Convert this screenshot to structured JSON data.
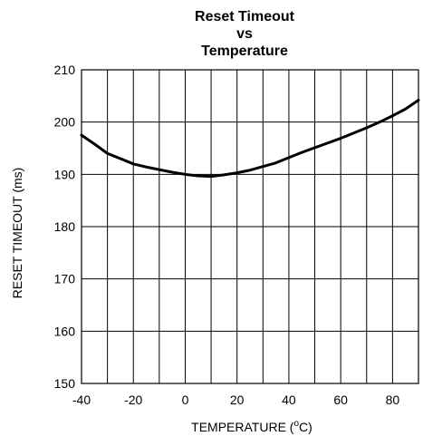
{
  "chart_data": {
    "type": "line",
    "title": [
      "Reset Timeout",
      "vs",
      "Temperature"
    ],
    "xlabel": "TEMPERATURE (",
    "xlabel_degree": "o",
    "xlabel_unit": "C)",
    "ylabel": "RESET TIMEOUT (ms)",
    "xlim": [
      -40,
      90
    ],
    "ylim": [
      150,
      210
    ],
    "x_ticks": [
      -40,
      -20,
      0,
      20,
      40,
      60,
      80
    ],
    "x_tick_labels": [
      "-40",
      "-20",
      "0",
      "20",
      "40",
      "60",
      "80"
    ],
    "y_ticks": [
      150,
      160,
      170,
      180,
      190,
      200,
      210
    ],
    "y_tick_labels": [
      "150",
      "160",
      "170",
      "180",
      "190",
      "200",
      "210"
    ],
    "x_grid_step": 10,
    "y_grid_step": 10,
    "grid": true,
    "series": [
      {
        "x": [
          -40,
          -35,
          -30,
          -25,
          -20,
          -15,
          -10,
          -5,
          0,
          5,
          10,
          15,
          20,
          25,
          30,
          35,
          40,
          45,
          50,
          55,
          60,
          65,
          70,
          75,
          80,
          85,
          90
        ],
        "y": [
          197.5,
          195.8,
          194.0,
          193.0,
          192.0,
          191.4,
          190.9,
          190.4,
          190.0,
          189.7,
          189.6,
          189.9,
          190.3,
          190.8,
          191.5,
          192.2,
          193.2,
          194.2,
          195.1,
          196.0,
          196.9,
          197.9,
          198.9,
          200.0,
          201.2,
          202.5,
          204.2
        ]
      }
    ],
    "colors": {
      "line": "#000000",
      "grid": "#000000",
      "background": "#ffffff"
    }
  }
}
